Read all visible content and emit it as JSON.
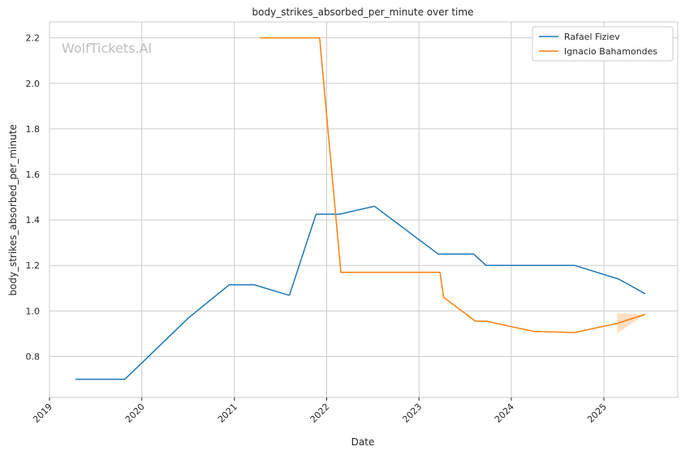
{
  "chart_data": {
    "type": "line",
    "title": "body_strikes_absorbed_per_minute over time",
    "xlabel": "Date",
    "ylabel": "body_strikes_absorbed_per_minute",
    "watermark": "WolfTickets.AI",
    "xlim": [
      "2019-01-01",
      "2025-10-20"
    ],
    "ylim": [
      0.62,
      2.27
    ],
    "x_ticks": [
      "2019",
      "2020",
      "2021",
      "2022",
      "2023",
      "2024",
      "2025"
    ],
    "y_ticks": [
      "0.8",
      "1.0",
      "1.2",
      "1.4",
      "1.6",
      "1.8",
      "2.0",
      "2.2"
    ],
    "grid": true,
    "legend_position": "top-right",
    "series": [
      {
        "name": "Rafael Fiziev",
        "color": "#1f77b4",
        "points": [
          [
            "2019-04-13",
            0.7
          ],
          [
            "2019-10-26",
            0.7
          ],
          [
            "2020-07-04",
            0.97
          ],
          [
            "2020-12-12",
            1.115
          ],
          [
            "2021-03-20",
            1.115
          ],
          [
            "2021-08-01",
            1.07
          ],
          [
            "2021-08-07",
            1.07
          ],
          [
            "2021-11-20",
            1.425
          ],
          [
            "2022-02-20",
            1.425
          ],
          [
            "2022-07-09",
            1.46
          ],
          [
            "2023-03-18",
            1.25
          ],
          [
            "2023-08-05",
            1.25
          ],
          [
            "2023-09-23",
            1.2
          ],
          [
            "2024-09-07",
            1.2
          ],
          [
            "2025-03-01",
            1.14
          ],
          [
            "2025-06-14",
            1.075
          ]
        ]
      },
      {
        "name": "Ignacio Bahamondes",
        "color": "#ff7f0e",
        "points": [
          [
            "2021-04-10",
            2.2
          ],
          [
            "2021-12-04",
            2.2
          ],
          [
            "2022-02-26",
            1.17
          ],
          [
            "2023-03-25",
            1.17
          ],
          [
            "2023-04-08",
            1.06
          ],
          [
            "2023-08-12",
            0.955
          ],
          [
            "2023-09-23",
            0.955
          ],
          [
            "2024-03-30",
            0.91
          ],
          [
            "2024-09-07",
            0.905
          ],
          [
            "2025-02-22",
            0.945
          ],
          [
            "2025-06-14",
            0.985
          ]
        ],
        "band": {
          "upper": [
            [
              "2025-02-22",
              0.99
            ],
            [
              "2025-06-14",
              0.985
            ]
          ],
          "lower": [
            [
              "2025-02-22",
              0.9
            ],
            [
              "2025-06-14",
              0.985
            ]
          ]
        }
      }
    ]
  }
}
